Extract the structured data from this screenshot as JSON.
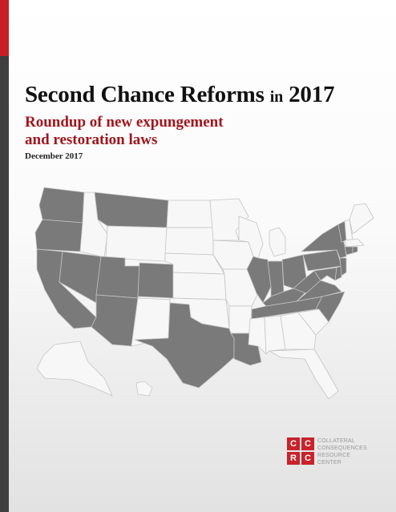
{
  "report": {
    "title_main": "Second Chance Reforms",
    "title_small": "in",
    "title_year": "2017",
    "subtitle_line1": "Roundup of new expungement",
    "subtitle_line2": "and restoration laws",
    "date": "December 2017"
  },
  "map": {
    "highlight_color": "#7a7a7a",
    "base_color": "#f7f7f7",
    "highlighted_states": [
      "WA",
      "OR",
      "CA",
      "NV",
      "UT",
      "AZ",
      "CO",
      "MT",
      "TX",
      "LA",
      "IL",
      "IN",
      "KY",
      "TN",
      "OH",
      "WV",
      "VA",
      "NC",
      "PA",
      "NY",
      "VT",
      "NJ",
      "DE",
      "MD",
      "CT",
      "RI"
    ]
  },
  "logo": {
    "letters": [
      "C",
      "C",
      "R",
      "C"
    ],
    "line1": "COLLATERAL",
    "line2": "CONSEQUENCES",
    "line3": "RESOURCE",
    "line4": "CENTER",
    "accent_color": "#c8232b"
  }
}
